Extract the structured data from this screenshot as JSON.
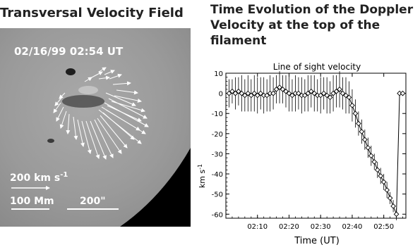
{
  "left_panel": {
    "title": "Transversal Velocity Field",
    "timestamp": "02/16/99 02:54 UT",
    "velocity_scale": "200 km s",
    "velocity_scale_exp": "-1",
    "length_scale": "100 Mm",
    "arcsec_scale": "200\""
  },
  "right_panel": {
    "title_lines": [
      "Time Evolution of the Doppler",
      "Velocity at the top of the",
      "filament"
    ]
  },
  "chart_data": {
    "type": "line",
    "title": "Line of sight velocity",
    "xlabel": "Time (UT)",
    "ylabel": "km s",
    "ylabel_exp": "-1",
    "xlim": [
      600,
      657
    ],
    "ylim": [
      -62,
      10
    ],
    "xticks": [
      {
        "value": 610,
        "label": "02:10"
      },
      {
        "value": 620,
        "label": "02:20"
      },
      {
        "value": 630,
        "label": "02:30"
      },
      {
        "value": 640,
        "label": "02:40"
      },
      {
        "value": 650,
        "label": "02:50"
      }
    ],
    "yticks": [
      10,
      0,
      -10,
      -20,
      -30,
      -40,
      -50,
      -60
    ],
    "grid": false,
    "series": [
      {
        "values": [
          {
            "t": 601,
            "v": 0,
            "err": 7
          },
          {
            "t": 602,
            "v": 1,
            "err": 6
          },
          {
            "t": 603,
            "v": 0,
            "err": 8
          },
          {
            "t": 604,
            "v": 1,
            "err": 7
          },
          {
            "t": 605,
            "v": 0,
            "err": 9
          },
          {
            "t": 606,
            "v": -1,
            "err": 8
          },
          {
            "t": 607,
            "v": 0,
            "err": 9
          },
          {
            "t": 608,
            "v": -1,
            "err": 8
          },
          {
            "t": 609,
            "v": 0,
            "err": 9
          },
          {
            "t": 610,
            "v": -1,
            "err": 9
          },
          {
            "t": 611,
            "v": 0,
            "err": 8
          },
          {
            "t": 612,
            "v": -1,
            "err": 9
          },
          {
            "t": 613,
            "v": -1,
            "err": 8
          },
          {
            "t": 614,
            "v": 0,
            "err": 9
          },
          {
            "t": 615,
            "v": 0,
            "err": 8
          },
          {
            "t": 616,
            "v": 2,
            "err": 7
          },
          {
            "t": 617,
            "v": 3,
            "err": 8
          },
          {
            "t": 618,
            "v": 2,
            "err": 7
          },
          {
            "t": 619,
            "v": 1,
            "err": 8
          },
          {
            "t": 620,
            "v": 0,
            "err": 9
          },
          {
            "t": 621,
            "v": -1,
            "err": 8
          },
          {
            "t": 622,
            "v": 0,
            "err": 9
          },
          {
            "t": 623,
            "v": 0,
            "err": 8
          },
          {
            "t": 624,
            "v": -1,
            "err": 9
          },
          {
            "t": 625,
            "v": -1,
            "err": 8
          },
          {
            "t": 626,
            "v": 0,
            "err": 9
          },
          {
            "t": 627,
            "v": 1,
            "err": 8
          },
          {
            "t": 628,
            "v": 0,
            "err": 9
          },
          {
            "t": 629,
            "v": -1,
            "err": 8
          },
          {
            "t": 630,
            "v": -1,
            "err": 9
          },
          {
            "t": 631,
            "v": 0,
            "err": 8
          },
          {
            "t": 632,
            "v": -1,
            "err": 9
          },
          {
            "t": 633,
            "v": -2,
            "err": 8
          },
          {
            "t": 634,
            "v": 0,
            "err": 9
          },
          {
            "t": 635,
            "v": 1,
            "err": 8
          },
          {
            "t": 636,
            "v": 2,
            "err": 9
          },
          {
            "t": 637,
            "v": 0,
            "err": 8
          },
          {
            "t": 638,
            "v": -1,
            "err": 9
          },
          {
            "t": 639,
            "v": -2,
            "err": 8
          },
          {
            "t": 640,
            "v": -6,
            "err": 8
          },
          {
            "t": 641,
            "v": -10,
            "err": 7
          },
          {
            "t": 642,
            "v": -15,
            "err": 6
          },
          {
            "t": 643,
            "v": -19,
            "err": 6
          },
          {
            "t": 644,
            "v": -23,
            "err": 5
          },
          {
            "t": 645,
            "v": -27,
            "err": 5
          },
          {
            "t": 646,
            "v": -31,
            "err": 5
          },
          {
            "t": 647,
            "v": -34,
            "err": 4
          },
          {
            "t": 648,
            "v": -38,
            "err": 4
          },
          {
            "t": 649,
            "v": -41,
            "err": 4
          },
          {
            "t": 650,
            "v": -44,
            "err": 4
          },
          {
            "t": 651,
            "v": -48,
            "err": 4
          },
          {
            "t": 652,
            "v": -52,
            "err": 3
          },
          {
            "t": 653,
            "v": -56,
            "err": 3
          },
          {
            "t": 654,
            "v": -60,
            "err": 3
          },
          {
            "t": 655,
            "v": 0,
            "err": 0
          },
          {
            "t": 656,
            "v": 0,
            "err": 0
          }
        ]
      }
    ]
  }
}
